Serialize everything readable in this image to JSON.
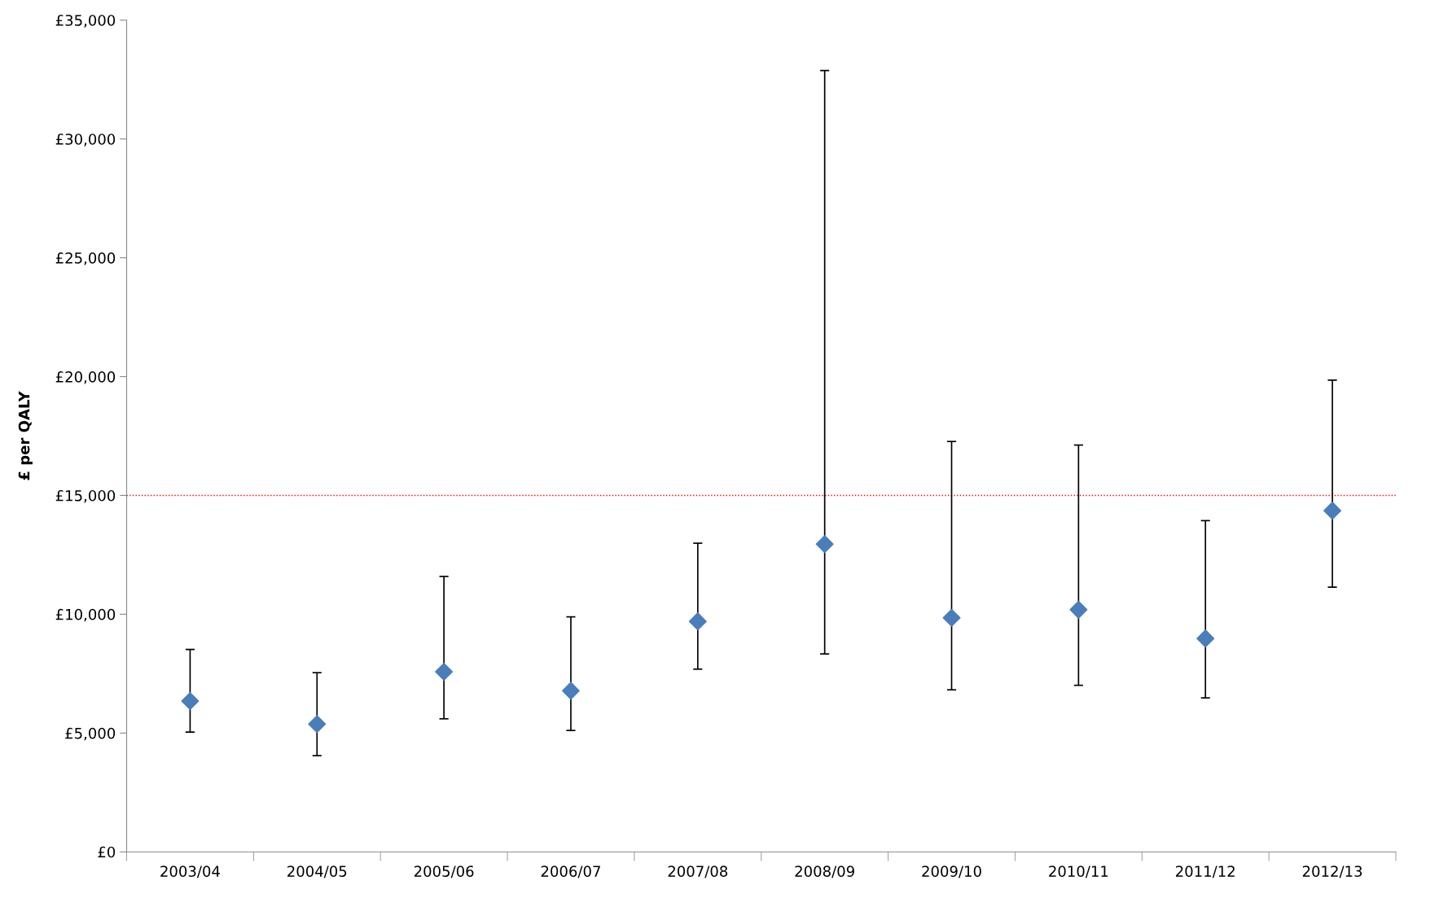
{
  "chart_data": {
    "type": "scatter",
    "ylabel": "£ per QALY",
    "categories": [
      "2003/04",
      "2004/05",
      "2005/06",
      "2006/07",
      "2007/08",
      "2008/09",
      "2009/10",
      "2010/11",
      "2011/12",
      "2012/13"
    ],
    "series": [
      {
        "color": "#4a7ebb",
        "values": [
          6350,
          5380,
          7580,
          6780,
          9700,
          12950,
          9850,
          10190,
          8980,
          14360
        ],
        "errors": [
          [
            5040,
            8520
          ],
          [
            4050,
            7540
          ],
          [
            5600,
            11590
          ],
          [
            5110,
            9890
          ],
          [
            7690,
            12990
          ],
          [
            8330,
            32880
          ],
          [
            6820,
            17270
          ],
          [
            7010,
            17120
          ],
          [
            6480,
            13940
          ],
          [
            11140,
            19850
          ]
        ]
      }
    ],
    "marker": "diamond",
    "grid": false,
    "legend": false,
    "ylim": [
      0,
      35000
    ],
    "yticks": [
      {
        "value": 0,
        "label": "£0"
      },
      {
        "value": 5000,
        "label": "£5,000"
      },
      {
        "value": 10000,
        "label": "£10,000"
      },
      {
        "value": 15000,
        "label": "£15,000"
      },
      {
        "value": 20000,
        "label": "£20,000"
      },
      {
        "value": 25000,
        "label": "£25,000"
      },
      {
        "value": 30000,
        "label": "£30,000"
      },
      {
        "value": 35000,
        "label": "£35,000"
      }
    ],
    "ref_lines": [
      {
        "axis": "y",
        "value": 15000,
        "color": "#ff0000",
        "line_style": "dotted"
      }
    ]
  }
}
